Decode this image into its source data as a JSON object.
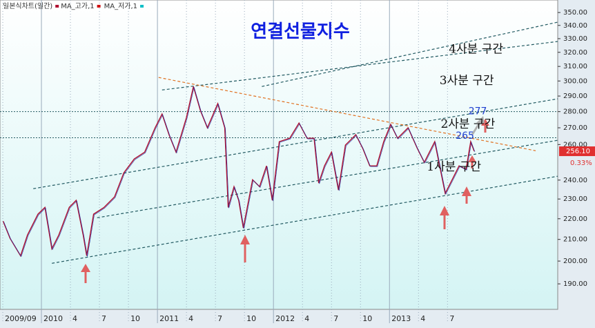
{
  "chart_data": {
    "type": "line",
    "title": "연결선물지수",
    "log_scale": true,
    "x": [
      2009.67,
      2009.73,
      2009.82,
      2009.88,
      2009.97,
      2010.03,
      2010.09,
      2010.15,
      2010.24,
      2010.3,
      2010.36,
      2010.39,
      2010.45,
      2010.54,
      2010.63,
      2010.71,
      2010.8,
      2010.89,
      2010.98,
      2011.04,
      2011.1,
      2011.16,
      2011.25,
      2011.31,
      2011.37,
      2011.43,
      2011.52,
      2011.58,
      2011.61,
      2011.66,
      2011.7,
      2011.74,
      2011.82,
      2011.88,
      2011.94,
      2011.99,
      2012.05,
      2012.14,
      2012.22,
      2012.29,
      2012.35,
      2012.39,
      2012.44,
      2012.5,
      2012.56,
      2012.62,
      2012.71,
      2012.77,
      2012.83,
      2012.89,
      2012.95,
      2013.01,
      2013.07,
      2013.16,
      2013.24,
      2013.3,
      2013.39,
      2013.48,
      2013.54,
      2013.6,
      2013.66,
      2013.7,
      2013.73
    ],
    "series": [
      {
        "name": "일본식차트(일간)",
        "color": "#b01030",
        "values": [
          218.8,
          210.5,
          202.4,
          212.1,
          222.3,
          225.7,
          205.6,
          212.1,
          225.7,
          229.3,
          212.1,
          202.4,
          222.3,
          225.7,
          231.1,
          244.0,
          251.7,
          255.6,
          270.0,
          278.5,
          265.8,
          255.6,
          276.3,
          296.3,
          280.7,
          270.0,
          285.1,
          270.0,
          225.7,
          236.5,
          229.3,
          215.5,
          240.2,
          236.5,
          247.8,
          229.3,
          261.7,
          263.7,
          272.9,
          263.7,
          263.7,
          238.4,
          247.8,
          255.6,
          234.7,
          259.7,
          265.8,
          257.7,
          247.8,
          247.8,
          261.7,
          272.1,
          263.7,
          270.0,
          257.7,
          249.8,
          261.7,
          232.9,
          240.2,
          247.8,
          245.9,
          261.7,
          256.1
        ]
      }
    ],
    "legend_items": [
      {
        "name": "MA_고가,1",
        "color": "#d01010"
      },
      {
        "name": "MA_저가,1",
        "color": "#10c0c8"
      }
    ],
    "xlim": [
      2009.643,
      2014.45
    ],
    "xticks": [
      {
        "value": 2009.667,
        "label": "2009/09"
      },
      {
        "value": 2010.0,
        "label": "2010"
      },
      {
        "value": 2010.25,
        "label": "4"
      },
      {
        "value": 2010.5,
        "label": "7"
      },
      {
        "value": 2010.75,
        "label": "10"
      },
      {
        "value": 2011.0,
        "label": "2011"
      },
      {
        "value": 2011.25,
        "label": "4"
      },
      {
        "value": 2011.5,
        "label": "7"
      },
      {
        "value": 2011.75,
        "label": "10"
      },
      {
        "value": 2012.0,
        "label": "2012"
      },
      {
        "value": 2012.25,
        "label": "4"
      },
      {
        "value": 2012.5,
        "label": "7"
      },
      {
        "value": 2012.75,
        "label": "10"
      },
      {
        "value": 2013.0,
        "label": "2013"
      },
      {
        "value": 2013.25,
        "label": "4"
      },
      {
        "value": 2013.5,
        "label": "7"
      }
    ],
    "ylim": [
      179.4,
      360
    ],
    "yticks": [
      {
        "value": 190,
        "label": "190.00"
      },
      {
        "value": 200,
        "label": "200.00"
      },
      {
        "value": 210,
        "label": "210.00"
      },
      {
        "value": 220,
        "label": "220.00"
      },
      {
        "value": 230,
        "label": "230.00"
      },
      {
        "value": 240,
        "label": "240.00"
      },
      {
        "value": 260,
        "label": "260.00"
      },
      {
        "value": 270,
        "label": "270.00"
      },
      {
        "value": 280,
        "label": "280.00"
      },
      {
        "value": 290,
        "label": "290.00"
      },
      {
        "value": 300,
        "label": "300.00"
      },
      {
        "value": 310,
        "label": "310.00"
      },
      {
        "value": 320,
        "label": "320.00"
      },
      {
        "value": 330,
        "label": "330.00"
      },
      {
        "value": 340,
        "label": "340.00"
      },
      {
        "value": 350,
        "label": "350.00"
      }
    ],
    "last_price": {
      "value": 256.1,
      "label": "256.10",
      "change": "0.33%"
    },
    "hlines": [
      280,
      264
    ],
    "trendlines": [
      {
        "x": [
          2010.09,
          2014.45
        ],
        "y": [
          199.0,
          242.1
        ],
        "color": "#205860"
      },
      {
        "x": [
          2010.48,
          2014.45
        ],
        "y": [
          220.5,
          262.5
        ],
        "color": "#205860"
      },
      {
        "x": [
          2009.93,
          2014.45
        ],
        "y": [
          235.4,
          288.2
        ],
        "color": "#205860"
      },
      {
        "x": [
          2011.04,
          2014.45
        ],
        "y": [
          294.0,
          327.9
        ],
        "color": "#205860"
      },
      {
        "x": [
          2011.9,
          2014.45
        ],
        "y": [
          296.3,
          342.5
        ],
        "color": "#205860"
      },
      {
        "x": [
          2011.01,
          2014.26
        ],
        "y": [
          302.4,
          256.4
        ],
        "color": "#e07020"
      }
    ],
    "annotations": [
      {
        "text": "4사분 구간",
        "x": 2013.98,
        "y": 322
      },
      {
        "text": "3사분 구간",
        "x": 2013.9,
        "y": 300
      },
      {
        "text": "2사분 구간",
        "x": 2013.91,
        "y": 272
      },
      {
        "text": "1사분 구간",
        "x": 2013.79,
        "y": 247
      },
      {
        "text": "277",
        "x": 2013.84,
        "y": 280,
        "color": "#2040d0"
      },
      {
        "text": "265",
        "x": 2013.73,
        "y": 265,
        "color": "#2040d0"
      }
    ]
  }
}
